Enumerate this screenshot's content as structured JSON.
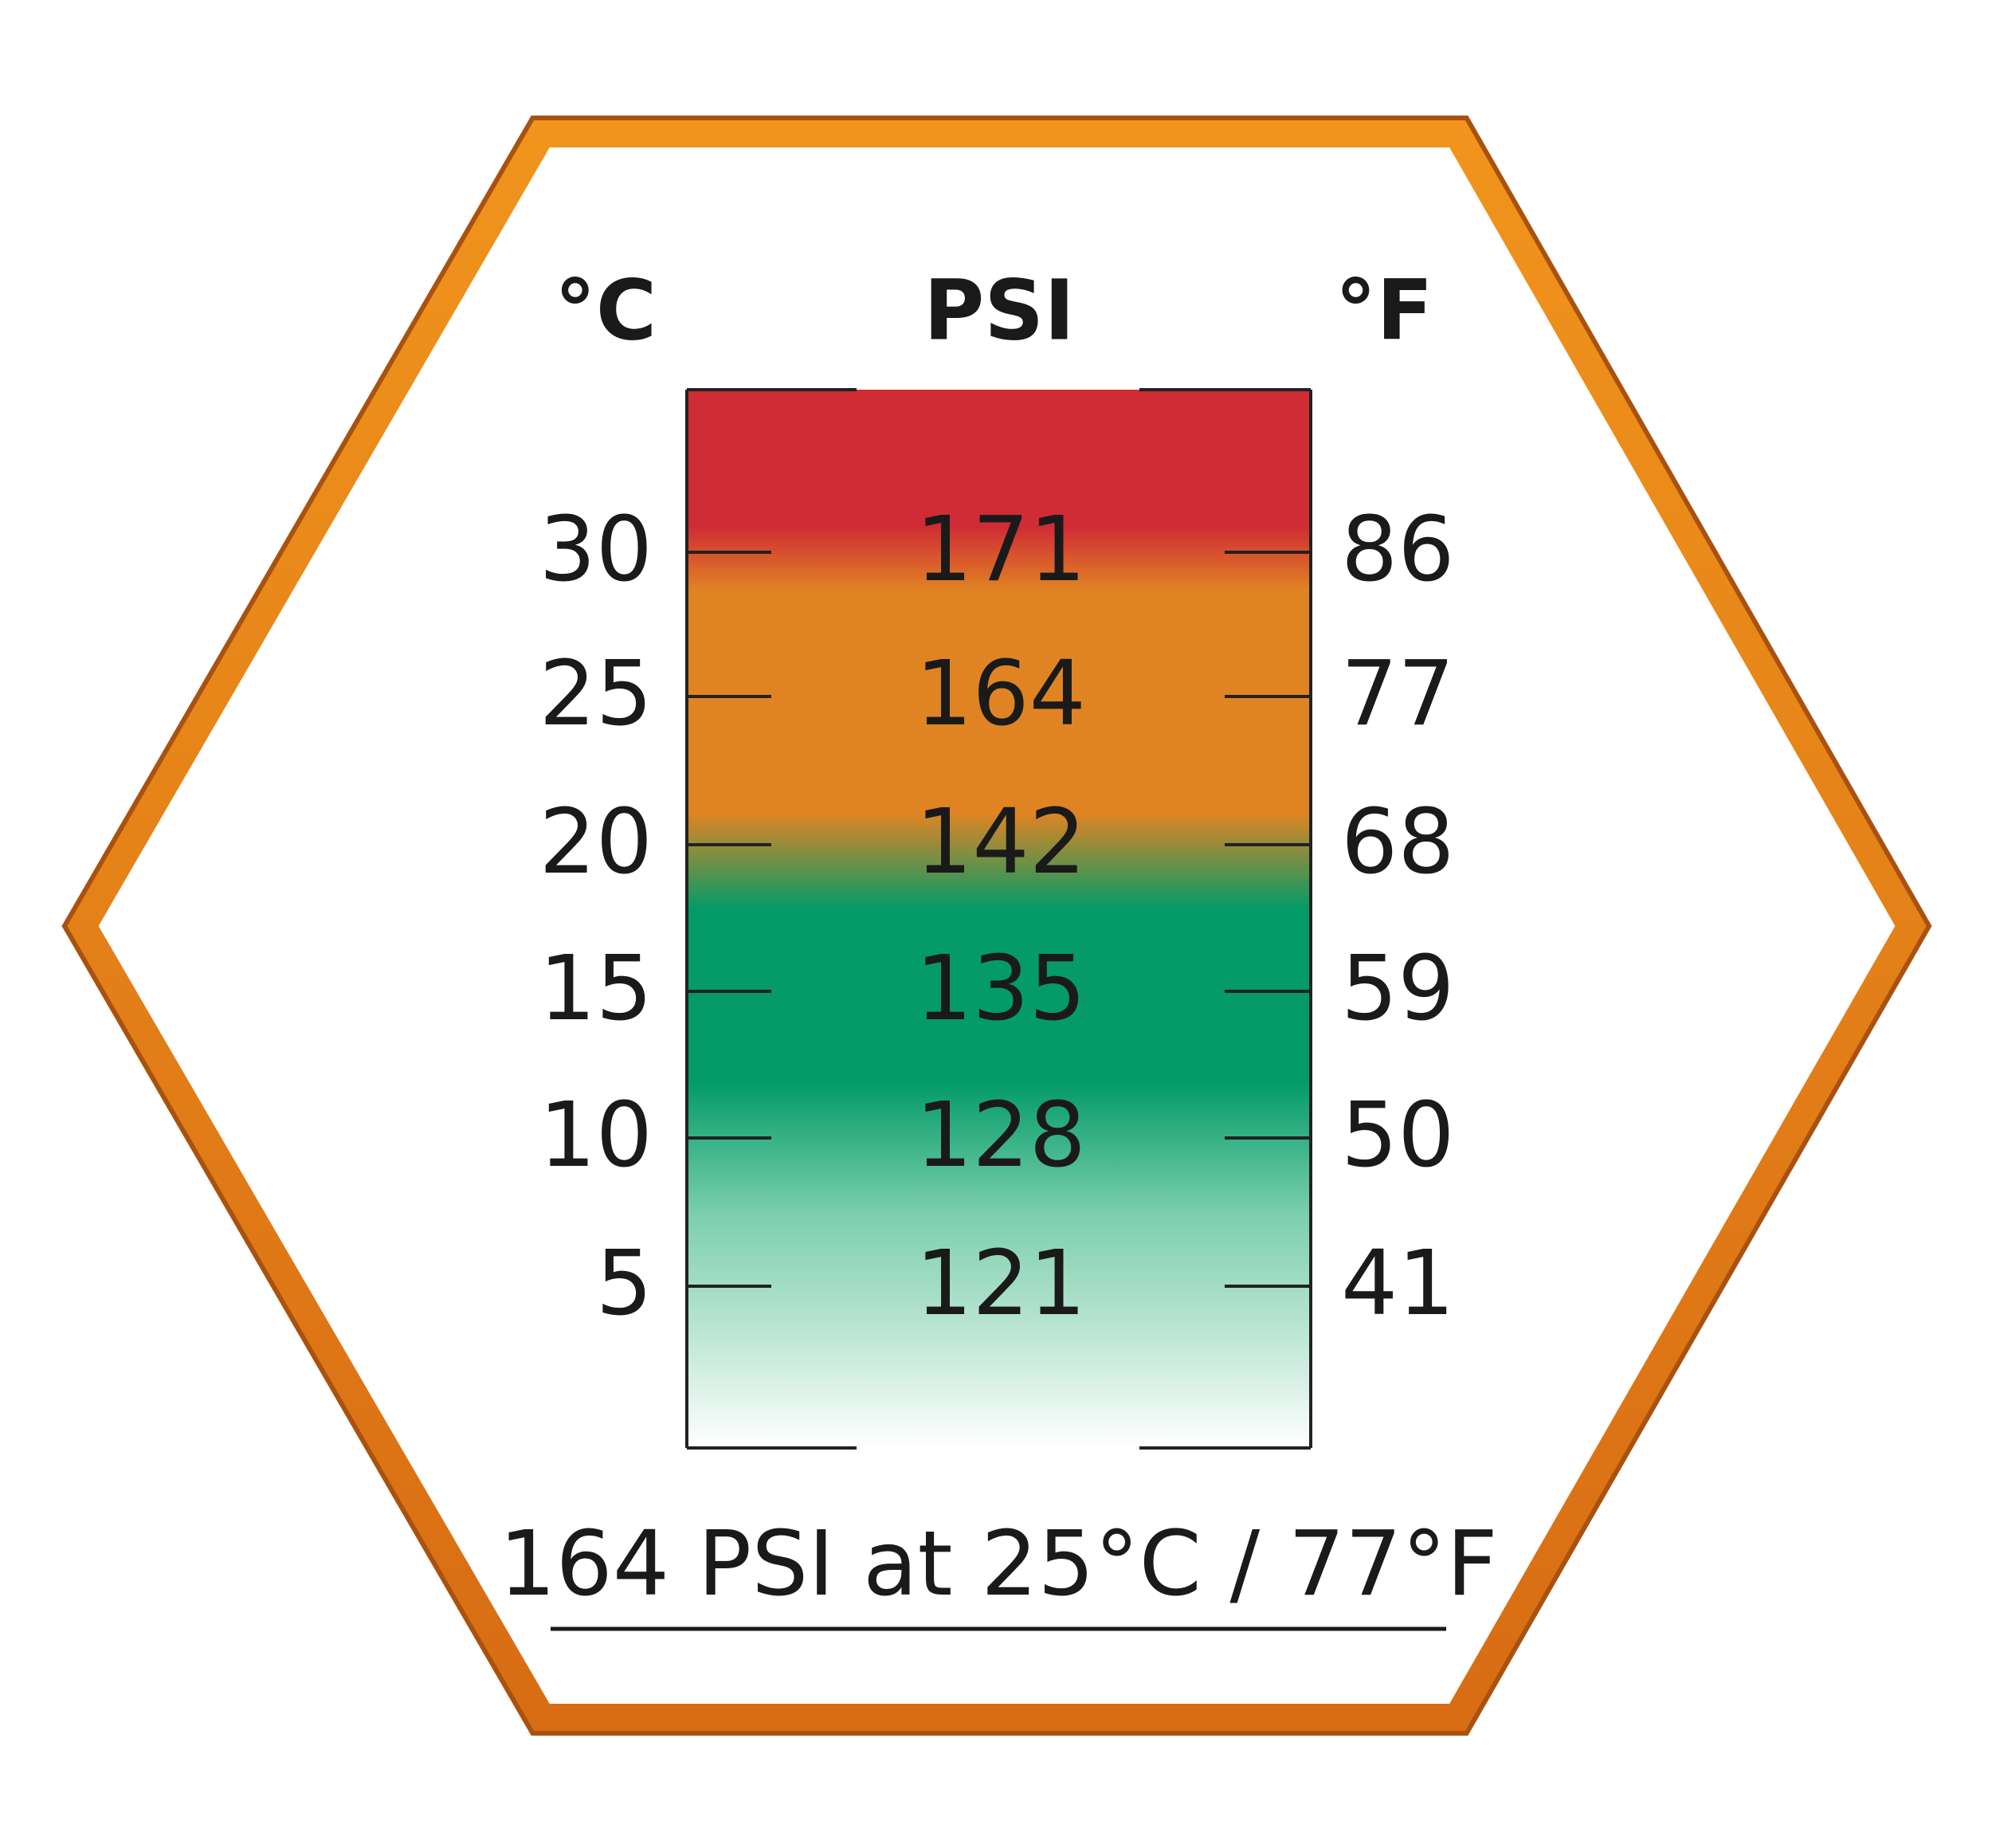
{
  "headers": {
    "celsius": "°C",
    "psi": "PSI",
    "fahrenheit": "°F"
  },
  "rows": [
    {
      "celsius": "30",
      "psi": "171",
      "fahrenheit": "86"
    },
    {
      "celsius": "25",
      "psi": "164",
      "fahrenheit": "77"
    },
    {
      "celsius": "20",
      "psi": "142",
      "fahrenheit": "68"
    },
    {
      "celsius": "15",
      "psi": "135",
      "fahrenheit": "59"
    },
    {
      "celsius": "10",
      "psi": "128",
      "fahrenheit": "50"
    },
    {
      "celsius": "5",
      "psi": "121",
      "fahrenheit": "41"
    }
  ],
  "caption": "164 PSI at 25°C / 77°F"
}
